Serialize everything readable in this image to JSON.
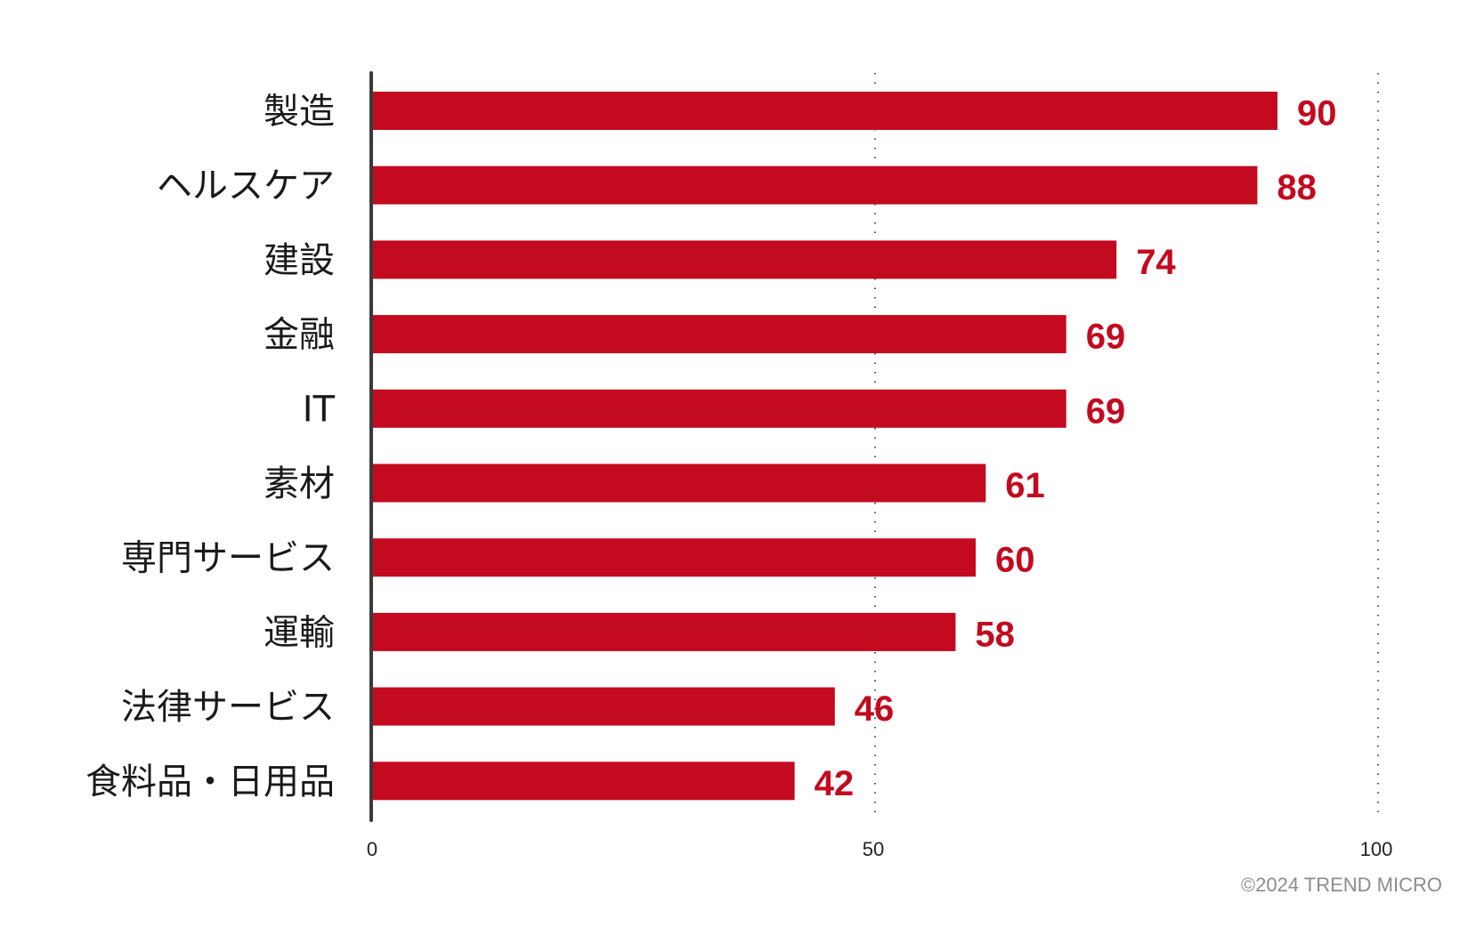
{
  "chart_data": {
    "type": "bar",
    "orientation": "horizontal",
    "categories": [
      "製造",
      "ヘルスケア",
      "建設",
      "金融",
      "IT",
      "素材",
      "専門サービス",
      "運輸",
      "法律サービス",
      "食料品・日用品"
    ],
    "values": [
      90,
      88,
      74,
      69,
      69,
      61,
      60,
      58,
      46,
      42
    ],
    "xlim": [
      0,
      100
    ],
    "xticks": [
      0,
      50,
      100
    ],
    "grid": "dotted vertical at 50 and 100",
    "bar_color": "#c30a1f",
    "label_color": "#c30a1f",
    "title": "",
    "xlabel": "",
    "ylabel": ""
  },
  "footer": {
    "copyright": "©2024 TREND MICRO"
  }
}
